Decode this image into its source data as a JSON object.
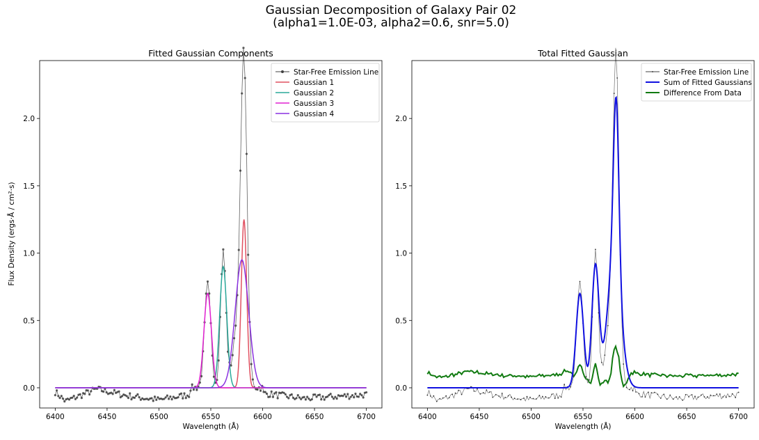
{
  "figure": {
    "title_line1": "Gaussian Decomposition of Galaxy Pair 02",
    "title_line2": "(alpha1=1.0E-03, alpha2=0.6, snr=5.0)"
  },
  "chart_data": [
    {
      "type": "line",
      "title": "Fitted Gaussian Components",
      "xlabel": "Wavelength (Å)",
      "ylabel": "Flux Density (ergs·Å / cm²·s)",
      "xlim": [
        6385,
        6715
      ],
      "ylim": [
        -0.15,
        2.43
      ],
      "xticks": [
        6400,
        6450,
        6500,
        6550,
        6600,
        6650,
        6700
      ],
      "yticks": [
        0.0,
        0.5,
        1.0,
        1.5,
        2.0
      ],
      "grid": false,
      "legend_position": "top-right",
      "data_series": {
        "name": "Star-Free Emission Line",
        "color": "#404040",
        "marker": "dot",
        "x_range": [
          6400,
          6700
        ],
        "x_step": 1.5,
        "line_peaks": [
          {
            "center": 6547,
            "height": 0.77,
            "sigma": 3.0
          },
          {
            "center": 6562,
            "height": 1.01,
            "sigma": 2.6
          },
          {
            "center": 6582,
            "height": 2.2,
            "sigma": 3.0
          },
          {
            "center": 6577,
            "height": 0.5,
            "sigma": 5.0
          }
        ],
        "continuum_segments": [
          {
            "x": [
              6400,
              6410
            ],
            "y": [
              -0.03,
              -0.1
            ]
          },
          {
            "x": [
              6410,
              6440
            ],
            "y": [
              -0.1,
              -0.01
            ]
          },
          {
            "x": [
              6440,
              6470
            ],
            "y": [
              -0.01,
              -0.06
            ]
          },
          {
            "x": [
              6470,
              6500
            ],
            "y": [
              -0.06,
              -0.09
            ]
          },
          {
            "x": [
              6500,
              6530
            ],
            "y": [
              -0.09,
              -0.05
            ]
          },
          {
            "x": [
              6600,
              6640
            ],
            "y": [
              -0.04,
              -0.08
            ]
          },
          {
            "x": [
              6640,
              6700
            ],
            "y": [
              -0.08,
              -0.05
            ]
          }
        ],
        "noise_amplitude": 0.025
      },
      "series": [
        {
          "name": "Gaussian 1",
          "color": "#e05060",
          "center": 6582,
          "height": 1.25,
          "sigma": 2.6
        },
        {
          "name": "Gaussian 2",
          "color": "#2aa89a",
          "center": 6562,
          "height": 0.9,
          "sigma": 3.4
        },
        {
          "name": "Gaussian 3",
          "color": "#e020d0",
          "center": 6547,
          "height": 0.7,
          "sigma": 3.6
        },
        {
          "name": "Gaussian 4",
          "color": "#8a30e0",
          "center": 6580,
          "height": 0.95,
          "sigma": 6.5
        }
      ]
    },
    {
      "type": "line",
      "title": "Total Fitted Gaussian",
      "xlabel": "Wavelength (Å)",
      "xlim": [
        6385,
        6715
      ],
      "ylim": [
        -0.15,
        2.43
      ],
      "xticks": [
        6400,
        6450,
        6500,
        6550,
        6600,
        6650,
        6700
      ],
      "yticks": [
        0.0,
        0.5,
        1.0,
        1.5,
        2.0
      ],
      "grid": false,
      "legend_position": "top-right",
      "series": [
        {
          "name": "Star-Free Emission Line",
          "color": "#404040"
        },
        {
          "name": "Sum of Fitted Gaussians",
          "color": "#1010e0"
        },
        {
          "name": "Difference From Data",
          "color": "#107a10"
        }
      ]
    }
  ]
}
